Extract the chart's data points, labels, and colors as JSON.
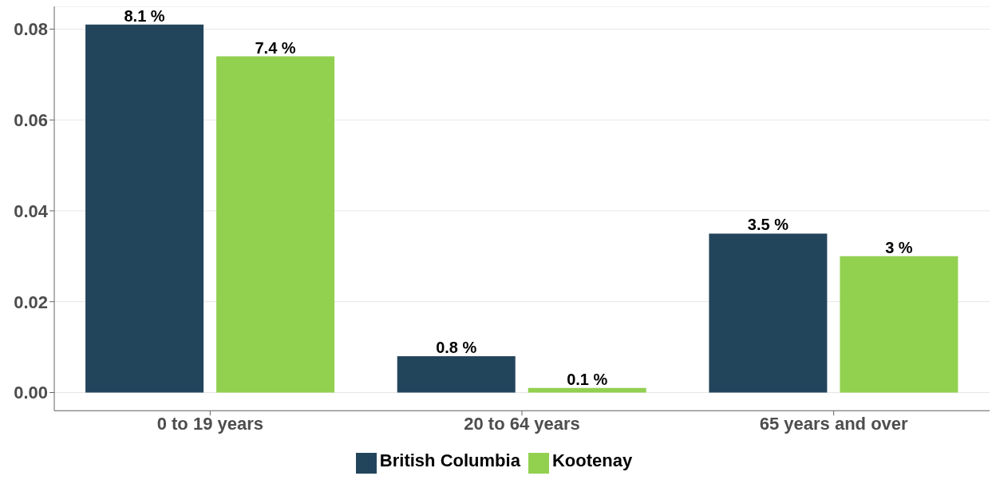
{
  "chart_data": {
    "type": "bar",
    "categories": [
      "0 to 19 years",
      "20 to 64 years",
      "65 years and over"
    ],
    "series": [
      {
        "name": "British Columbia",
        "color": "#23455c",
        "values": [
          0.081,
          0.008,
          0.035
        ],
        "value_labels": [
          "8.1 %",
          "0.8 %",
          "3.5 %"
        ]
      },
      {
        "name": "Kootenay",
        "color": "#92d050",
        "values": [
          0.074,
          0.001,
          0.03
        ],
        "value_labels": [
          "7.4 %",
          "0.1 %",
          "3 %"
        ]
      }
    ],
    "ylim": [
      -0.004,
      0.085
    ],
    "yticks": [
      {
        "value": 0,
        "label": "0.00"
      },
      {
        "value": 0.02,
        "label": "0.02"
      },
      {
        "value": 0.04,
        "label": "0.04"
      },
      {
        "value": 0.06,
        "label": "0.06"
      },
      {
        "value": 0.08,
        "label": "0.08"
      }
    ],
    "grid": "y",
    "legend": "bottom"
  }
}
